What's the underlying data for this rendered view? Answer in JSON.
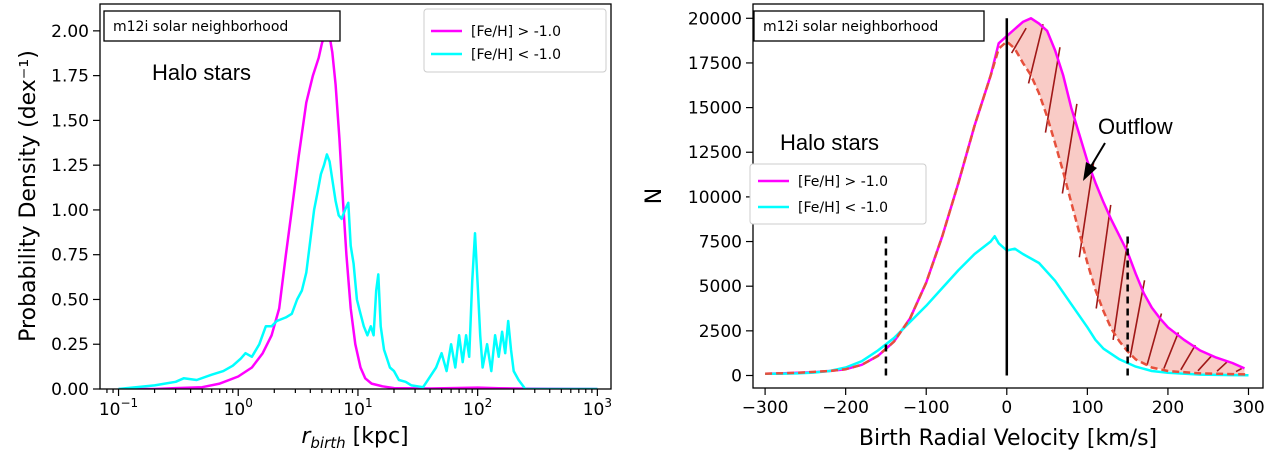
{
  "chart_data": [
    {
      "type": "line",
      "xscale": "log",
      "xlim": [
        0.07,
        1300
      ],
      "ylim": [
        0,
        2.15
      ],
      "ylabel": "Probability Density (dex⁻¹)",
      "xlabel_main": "r",
      "xlabel_sub": "birth",
      "xlabel_unit": " [kpc]",
      "xticks": [
        0.1,
        1,
        10,
        100,
        1000
      ],
      "xtick_exponents": [
        "−1",
        "0",
        "1",
        "2",
        "3"
      ],
      "yticks": [
        0,
        0.25,
        0.5,
        0.75,
        1.0,
        1.25,
        1.5,
        1.75,
        2.0
      ],
      "ytick_labels": [
        "0.00",
        "0.25",
        "0.50",
        "0.75",
        "1.00",
        "1.25",
        "1.50",
        "1.75",
        "2.00"
      ],
      "textbox": "m12i solar neighborhood",
      "annotation": "Halo stars",
      "legend_position": "top-right",
      "series": [
        {
          "name": "[Fe/H] > -1.0",
          "color": "#ff00ff",
          "points": [
            [
              0.1,
              0
            ],
            [
              0.2,
              0
            ],
            [
              0.3,
              0.005
            ],
            [
              0.5,
              0.01
            ],
            [
              0.7,
              0.03
            ],
            [
              1.0,
              0.07
            ],
            [
              1.3,
              0.12
            ],
            [
              1.6,
              0.2
            ],
            [
              1.9,
              0.3
            ],
            [
              2.2,
              0.45
            ],
            [
              2.5,
              0.75
            ],
            [
              2.8,
              1.0
            ],
            [
              3.2,
              1.3
            ],
            [
              3.7,
              1.6
            ],
            [
              4.2,
              1.75
            ],
            [
              4.7,
              1.85
            ],
            [
              5.0,
              1.93
            ],
            [
              5.3,
              1.98
            ],
            [
              5.5,
              2.0
            ],
            [
              5.8,
              1.97
            ],
            [
              6.1,
              1.88
            ],
            [
              6.5,
              1.7
            ],
            [
              7.0,
              1.4
            ],
            [
              7.5,
              1.05
            ],
            [
              8.0,
              0.75
            ],
            [
              8.7,
              0.45
            ],
            [
              9.5,
              0.25
            ],
            [
              10.5,
              0.12
            ],
            [
              11.5,
              0.06
            ],
            [
              13,
              0.03
            ],
            [
              16,
              0.015
            ],
            [
              20,
              0.005
            ],
            [
              40,
              0.003
            ],
            [
              100,
              0.008
            ],
            [
              150,
              0.004
            ],
            [
              250,
              0.002
            ],
            [
              1000,
              0
            ]
          ]
        },
        {
          "name": "[Fe/H] < -1.0",
          "color": "#00ffff",
          "points": [
            [
              0.1,
              0
            ],
            [
              0.2,
              0.02
            ],
            [
              0.3,
              0.04
            ],
            [
              0.35,
              0.06
            ],
            [
              0.45,
              0.05
            ],
            [
              0.6,
              0.08
            ],
            [
              0.75,
              0.1
            ],
            [
              0.9,
              0.13
            ],
            [
              1.05,
              0.17
            ],
            [
              1.15,
              0.2
            ],
            [
              1.3,
              0.18
            ],
            [
              1.5,
              0.25
            ],
            [
              1.7,
              0.35
            ],
            [
              1.9,
              0.35
            ],
            [
              2.1,
              0.38
            ],
            [
              2.5,
              0.4
            ],
            [
              2.8,
              0.42
            ],
            [
              3.1,
              0.5
            ],
            [
              3.4,
              0.55
            ],
            [
              3.7,
              0.65
            ],
            [
              4.0,
              0.83
            ],
            [
              4.3,
              1.0
            ],
            [
              4.6,
              1.1
            ],
            [
              4.9,
              1.2
            ],
            [
              5.2,
              1.25
            ],
            [
              5.5,
              1.31
            ],
            [
              5.8,
              1.27
            ],
            [
              6.1,
              1.17
            ],
            [
              6.5,
              1.05
            ],
            [
              6.9,
              0.97
            ],
            [
              7.3,
              0.95
            ],
            [
              7.8,
              1.0
            ],
            [
              8.3,
              1.04
            ],
            [
              8.7,
              0.8
            ],
            [
              9.2,
              0.7
            ],
            [
              9.8,
              0.5
            ],
            [
              10.5,
              0.42
            ],
            [
              11.2,
              0.35
            ],
            [
              12,
              0.3
            ],
            [
              12.8,
              0.35
            ],
            [
              13.5,
              0.3
            ],
            [
              14.2,
              0.55
            ],
            [
              14.8,
              0.64
            ],
            [
              15.5,
              0.35
            ],
            [
              16.5,
              0.22
            ],
            [
              17.5,
              0.17
            ],
            [
              18.5,
              0.12
            ],
            [
              20,
              0.1
            ],
            [
              22,
              0.05
            ],
            [
              25,
              0.04
            ],
            [
              28,
              0.02
            ],
            [
              35,
              0.01
            ],
            [
              45,
              0.12
            ],
            [
              50,
              0.2
            ],
            [
              55,
              0.1
            ],
            [
              60,
              0.25
            ],
            [
              65,
              0.12
            ],
            [
              70,
              0.3
            ],
            [
              75,
              0.15
            ],
            [
              80,
              0.3
            ],
            [
              85,
              0.18
            ],
            [
              90,
              0.6
            ],
            [
              95,
              0.87
            ],
            [
              100,
              0.58
            ],
            [
              105,
              0.3
            ],
            [
              110,
              0.12
            ],
            [
              120,
              0.25
            ],
            [
              130,
              0.1
            ],
            [
              140,
              0.3
            ],
            [
              150,
              0.18
            ],
            [
              160,
              0.32
            ],
            [
              170,
              0.2
            ],
            [
              180,
              0.38
            ],
            [
              190,
              0.22
            ],
            [
              200,
              0.1
            ],
            [
              220,
              0.05
            ],
            [
              250,
              0
            ],
            [
              300,
              0
            ],
            [
              1000,
              0
            ]
          ]
        }
      ]
    },
    {
      "type": "line",
      "xlim": [
        -315,
        318
      ],
      "ylim": [
        -700,
        20800
      ],
      "xlabel": "Birth Radial Velocity [km/s]",
      "ylabel": "N",
      "xticks": [
        -300,
        -200,
        -100,
        0,
        100,
        200,
        300
      ],
      "xtick_labels": [
        "−300",
        "−200",
        "−100",
        "0",
        "100",
        "200",
        "300"
      ],
      "yticks": [
        0,
        2500,
        5000,
        7500,
        10000,
        12500,
        15000,
        17500,
        20000
      ],
      "ytick_labels": [
        "0",
        "2500",
        "5000",
        "7500",
        "10000",
        "12500",
        "15000",
        "17500",
        "20000"
      ],
      "textbox": "m12i solar neighborhood",
      "annotation": "Halo stars",
      "outflow_label": "Outflow",
      "legend_position": "center-left",
      "vertical_lines": [
        {
          "x": 0,
          "ymin": 0,
          "ymax": 20000,
          "style": "solid"
        },
        {
          "x": -150,
          "ymin": 0,
          "ymax": 7800,
          "style": "dashed"
        },
        {
          "x": 150,
          "ymin": 0,
          "ymax": 7800,
          "style": "dashed"
        }
      ],
      "series": [
        {
          "name": "[Fe/H] > -1.0",
          "color": "#ff00ff",
          "points": [
            [
              -300,
              100
            ],
            [
              -280,
              120
            ],
            [
              -260,
              150
            ],
            [
              -240,
              180
            ],
            [
              -220,
              250
            ],
            [
              -200,
              350
            ],
            [
              -180,
              600
            ],
            [
              -160,
              1100
            ],
            [
              -140,
              1900
            ],
            [
              -120,
              3200
            ],
            [
              -100,
              5200
            ],
            [
              -80,
              7800
            ],
            [
              -60,
              10800
            ],
            [
              -40,
              14000
            ],
            [
              -20,
              16800
            ],
            [
              -10,
              18600
            ],
            [
              0,
              19000
            ],
            [
              10,
              19400
            ],
            [
              20,
              19800
            ],
            [
              30,
              20000
            ],
            [
              40,
              19700
            ],
            [
              50,
              19300
            ],
            [
              60,
              18200
            ],
            [
              70,
              16800
            ],
            [
              80,
              15000
            ],
            [
              90,
              13500
            ],
            [
              100,
              12000
            ],
            [
              110,
              10800
            ],
            [
              120,
              9700
            ],
            [
              130,
              8700
            ],
            [
              140,
              7800
            ],
            [
              150,
              6900
            ],
            [
              160,
              5700
            ],
            [
              170,
              4600
            ],
            [
              180,
              3800
            ],
            [
              190,
              3200
            ],
            [
              200,
              2700
            ],
            [
              220,
              2000
            ],
            [
              240,
              1400
            ],
            [
              260,
              1000
            ],
            [
              280,
              700
            ],
            [
              295,
              400
            ]
          ]
        },
        {
          "name": "[Fe/H] < -1.0",
          "color": "#00ffff",
          "points": [
            [
              -300,
              100
            ],
            [
              -280,
              100
            ],
            [
              -260,
              120
            ],
            [
              -240,
              160
            ],
            [
              -220,
              250
            ],
            [
              -200,
              450
            ],
            [
              -180,
              800
            ],
            [
              -160,
              1400
            ],
            [
              -140,
              2100
            ],
            [
              -120,
              3000
            ],
            [
              -100,
              3900
            ],
            [
              -80,
              4900
            ],
            [
              -60,
              5900
            ],
            [
              -40,
              6800
            ],
            [
              -20,
              7500
            ],
            [
              -15,
              7800
            ],
            [
              -10,
              7400
            ],
            [
              0,
              7000
            ],
            [
              10,
              7100
            ],
            [
              20,
              6800
            ],
            [
              40,
              6300
            ],
            [
              60,
              5300
            ],
            [
              80,
              4000
            ],
            [
              100,
              2700
            ],
            [
              110,
              2000
            ],
            [
              120,
              1500
            ],
            [
              140,
              900
            ],
            [
              160,
              500
            ],
            [
              180,
              250
            ],
            [
              200,
              150
            ],
            [
              240,
              50
            ],
            [
              280,
              20
            ],
            [
              300,
              10
            ]
          ]
        },
        {
          "name": "",
          "color": "#e6503c",
          "style": "dashed",
          "points": [
            [
              -300,
              100
            ],
            [
              -260,
              150
            ],
            [
              -220,
              250
            ],
            [
              -200,
              350
            ],
            [
              -180,
              600
            ],
            [
              -160,
              1100
            ],
            [
              -140,
              1900
            ],
            [
              -120,
              3200
            ],
            [
              -100,
              5200
            ],
            [
              -80,
              7800
            ],
            [
              -60,
              10800
            ],
            [
              -40,
              14000
            ],
            [
              -20,
              16800
            ],
            [
              -10,
              18300
            ],
            [
              0,
              18700
            ],
            [
              10,
              18300
            ],
            [
              20,
              17500
            ],
            [
              30,
              16800
            ],
            [
              40,
              15800
            ],
            [
              50,
              14500
            ],
            [
              60,
              13000
            ],
            [
              70,
              11400
            ],
            [
              80,
              9700
            ],
            [
              90,
              8000
            ],
            [
              100,
              6300
            ],
            [
              110,
              4800
            ],
            [
              120,
              3600
            ],
            [
              130,
              2600
            ],
            [
              140,
              1900
            ],
            [
              150,
              1350
            ],
            [
              160,
              900
            ],
            [
              180,
              450
            ],
            [
              200,
              250
            ],
            [
              240,
              120
            ],
            [
              280,
              80
            ],
            [
              300,
              60
            ]
          ]
        }
      ]
    }
  ]
}
